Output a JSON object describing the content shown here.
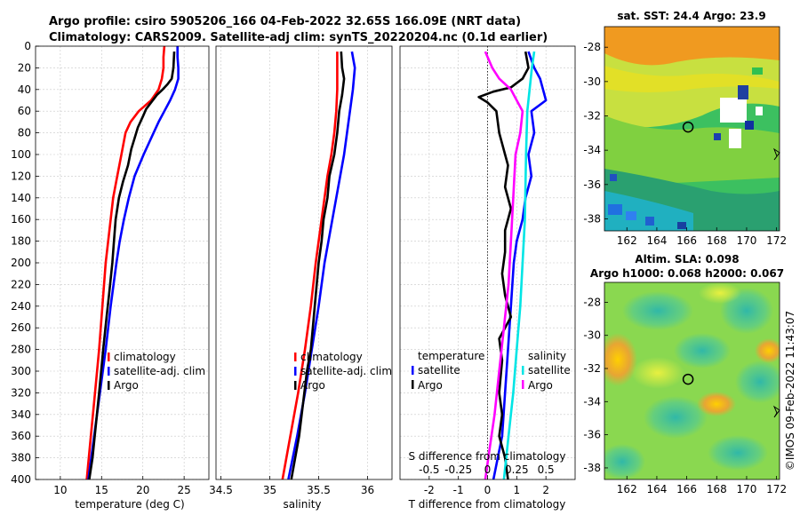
{
  "header": {
    "title_line1": "Argo profile: csiro 5905206_166 04-Feb-2022 32.65S 166.09E (NRT data)",
    "title_line2": "Climatology: CARS2009. Satellite-adj clim: synTS_20220204.nc (0.1d earlier)"
  },
  "sidebar": {
    "imos_stamp": "©IMOS 09-Feb-2022 11:43:07"
  },
  "colors": {
    "climatology": "#ff0000",
    "satellite": "#0000ff",
    "argo": "#000000",
    "salinity_sat": "#00e5e5",
    "salinity_argo": "#ff00ff",
    "grid": "#c8c8c8"
  },
  "chart_data": [
    {
      "id": "temperature",
      "type": "line",
      "xlabel": "temperature (deg C)",
      "ylabel": "",
      "xlim": [
        7,
        28
      ],
      "ylim": [
        400,
        0
      ],
      "xticks": [
        10,
        15,
        20,
        25
      ],
      "yticks": [
        0,
        20,
        40,
        60,
        80,
        100,
        120,
        140,
        160,
        180,
        200,
        220,
        240,
        260,
        280,
        300,
        320,
        340,
        360,
        380,
        400
      ],
      "grid": true,
      "legend": [
        "climatology",
        "satellite-adj. clim",
        "Argo"
      ],
      "series": [
        {
          "name": "climatology",
          "color": "#ff0000",
          "points": [
            [
              22.6,
              0
            ],
            [
              22.5,
              10
            ],
            [
              22.5,
              20
            ],
            [
              22.3,
              30
            ],
            [
              21.9,
              40
            ],
            [
              21.0,
              50
            ],
            [
              19.5,
              60
            ],
            [
              18.5,
              70
            ],
            [
              17.9,
              80
            ],
            [
              17.4,
              100
            ],
            [
              16.9,
              120
            ],
            [
              16.4,
              140
            ],
            [
              16.1,
              160
            ],
            [
              15.8,
              180
            ],
            [
              15.5,
              200
            ],
            [
              15.1,
              240
            ],
            [
              14.7,
              280
            ],
            [
              14.2,
              320
            ],
            [
              13.7,
              360
            ],
            [
              13.2,
              400
            ]
          ]
        },
        {
          "name": "satellite-adj. clim",
          "color": "#0000ff",
          "points": [
            [
              24.2,
              0
            ],
            [
              24.2,
              10
            ],
            [
              24.3,
              20
            ],
            [
              24.3,
              30
            ],
            [
              23.9,
              40
            ],
            [
              23.3,
              50
            ],
            [
              22.6,
              60
            ],
            [
              21.9,
              70
            ],
            [
              21.3,
              80
            ],
            [
              20.1,
              100
            ],
            [
              19.0,
              120
            ],
            [
              18.3,
              140
            ],
            [
              17.7,
              160
            ],
            [
              17.2,
              180
            ],
            [
              16.8,
              200
            ],
            [
              16.1,
              240
            ],
            [
              15.5,
              280
            ],
            [
              14.8,
              320
            ],
            [
              14.1,
              360
            ],
            [
              13.4,
              400
            ]
          ]
        },
        {
          "name": "Argo",
          "color": "#000000",
          "points": [
            [
              23.8,
              5
            ],
            [
              23.7,
              20
            ],
            [
              23.5,
              30
            ],
            [
              23.0,
              35
            ],
            [
              22.4,
              40
            ],
            [
              21.7,
              45
            ],
            [
              21.0,
              52
            ],
            [
              20.4,
              58
            ],
            [
              20.0,
              65
            ],
            [
              19.7,
              70
            ],
            [
              19.4,
              75
            ],
            [
              19.0,
              85
            ],
            [
              18.6,
              95
            ],
            [
              18.2,
              110
            ],
            [
              17.6,
              125
            ],
            [
              17.1,
              140
            ],
            [
              16.7,
              160
            ],
            [
              16.5,
              180
            ],
            [
              16.3,
              200
            ],
            [
              15.9,
              230
            ],
            [
              15.6,
              250
            ],
            [
              15.2,
              280
            ],
            [
              14.7,
              320
            ],
            [
              14.3,
              350
            ],
            [
              13.9,
              380
            ],
            [
              13.5,
              400
            ]
          ]
        }
      ]
    },
    {
      "id": "salinity",
      "type": "line",
      "xlabel": "salinity",
      "ylabel": "",
      "xlim": [
        34.45,
        36.25
      ],
      "ylim": [
        400,
        0
      ],
      "xticks": [
        34.5,
        35,
        35.5,
        36
      ],
      "grid": true,
      "legend": [
        "climatology",
        "satellite-adj. clim",
        "Argo"
      ],
      "series": [
        {
          "name": "climatology",
          "color": "#ff0000",
          "points": [
            [
              35.69,
              5
            ],
            [
              35.69,
              20
            ],
            [
              35.69,
              40
            ],
            [
              35.68,
              60
            ],
            [
              35.66,
              80
            ],
            [
              35.63,
              100
            ],
            [
              35.59,
              120
            ],
            [
              35.56,
              140
            ],
            [
              35.53,
              160
            ],
            [
              35.5,
              180
            ],
            [
              35.47,
              200
            ],
            [
              35.42,
              240
            ],
            [
              35.36,
              280
            ],
            [
              35.29,
              320
            ],
            [
              35.21,
              360
            ],
            [
              35.13,
              400
            ]
          ]
        },
        {
          "name": "satellite-adj. clim",
          "color": "#0000ff",
          "points": [
            [
              35.84,
              5
            ],
            [
              35.87,
              20
            ],
            [
              35.85,
              40
            ],
            [
              35.82,
              60
            ],
            [
              35.79,
              80
            ],
            [
              35.76,
              100
            ],
            [
              35.72,
              120
            ],
            [
              35.68,
              140
            ],
            [
              35.64,
              160
            ],
            [
              35.6,
              180
            ],
            [
              35.56,
              200
            ],
            [
              35.5,
              240
            ],
            [
              35.43,
              280
            ],
            [
              35.36,
              320
            ],
            [
              35.28,
              360
            ],
            [
              35.19,
              400
            ]
          ]
        },
        {
          "name": "Argo",
          "color": "#000000",
          "points": [
            [
              35.73,
              5
            ],
            [
              35.74,
              20
            ],
            [
              35.76,
              30
            ],
            [
              35.74,
              45
            ],
            [
              35.71,
              60
            ],
            [
              35.69,
              80
            ],
            [
              35.66,
              100
            ],
            [
              35.61,
              120
            ],
            [
              35.59,
              140
            ],
            [
              35.55,
              160
            ],
            [
              35.53,
              180
            ],
            [
              35.5,
              200
            ],
            [
              35.48,
              220
            ],
            [
              35.46,
              240
            ],
            [
              35.44,
              260
            ],
            [
              35.42,
              280
            ],
            [
              35.38,
              300
            ],
            [
              35.34,
              330
            ],
            [
              35.3,
              360
            ],
            [
              35.24,
              390
            ],
            [
              35.22,
              400
            ]
          ]
        }
      ]
    },
    {
      "id": "difference",
      "type": "line",
      "xlabel": "T difference from climatology",
      "xlabel_top": "S difference from climatology",
      "xlim": [
        -3,
        3
      ],
      "xlim_salinity": [
        -0.75,
        0.75
      ],
      "ylim": [
        400,
        0
      ],
      "xticks": [
        -2,
        -1,
        0,
        1,
        2
      ],
      "xticks_top": [
        -0.5,
        -0.25,
        0,
        0.25,
        0.5
      ],
      "xticklabels_top": [
        "-0.5",
        "-0.25",
        "0",
        "0.25",
        "0.5"
      ],
      "grid": true,
      "legend_temperature": {
        "title": "temperature",
        "entries": [
          "satellite",
          "Argo"
        ]
      },
      "legend_salinity": {
        "title": "salinity",
        "entries": [
          "satellite",
          "Argo"
        ]
      },
      "series": [
        {
          "name": "temperature satellite",
          "color": "#0000ff",
          "points": [
            [
              1.4,
              5
            ],
            [
              1.6,
              20
            ],
            [
              1.8,
              30
            ],
            [
              1.9,
              40
            ],
            [
              2.0,
              50
            ],
            [
              1.5,
              60
            ],
            [
              1.6,
              80
            ],
            [
              1.4,
              100
            ],
            [
              1.5,
              120
            ],
            [
              1.3,
              140
            ],
            [
              1.2,
              160
            ],
            [
              1.0,
              180
            ],
            [
              0.9,
              200
            ],
            [
              0.8,
              240
            ],
            [
              0.7,
              280
            ],
            [
              0.6,
              320
            ],
            [
              0.5,
              360
            ],
            [
              0.2,
              400
            ]
          ]
        },
        {
          "name": "temperature Argo",
          "color": "#000000",
          "points": [
            [
              1.3,
              5
            ],
            [
              1.4,
              20
            ],
            [
              1.2,
              30
            ],
            [
              0.8,
              38
            ],
            [
              0.2,
              42
            ],
            [
              -0.3,
              47
            ],
            [
              0.0,
              52
            ],
            [
              0.3,
              60
            ],
            [
              0.4,
              80
            ],
            [
              0.5,
              90
            ],
            [
              0.6,
              100
            ],
            [
              0.7,
              110
            ],
            [
              0.6,
              130
            ],
            [
              0.8,
              150
            ],
            [
              0.6,
              170
            ],
            [
              0.6,
              190
            ],
            [
              0.5,
              210
            ],
            [
              0.6,
              230
            ],
            [
              0.8,
              250
            ],
            [
              0.4,
              270
            ],
            [
              0.5,
              290
            ],
            [
              0.4,
              320
            ],
            [
              0.5,
              340
            ],
            [
              0.4,
              360
            ],
            [
              0.6,
              380
            ],
            [
              0.7,
              400
            ]
          ]
        },
        {
          "name": "salinity satellite",
          "color": "#00e5e5",
          "points": [
            [
              0.4,
              5
            ],
            [
              0.38,
              20
            ],
            [
              0.36,
              40
            ],
            [
              0.34,
              60
            ],
            [
              0.33,
              100
            ],
            [
              0.32,
              160
            ],
            [
              0.3,
              200
            ],
            [
              0.28,
              240
            ],
            [
              0.25,
              280
            ],
            [
              0.22,
              320
            ],
            [
              0.18,
              360
            ],
            [
              0.14,
              400
            ]
          ]
        },
        {
          "name": "salinity Argo",
          "color": "#ff00ff",
          "points": [
            [
              -0.02,
              5
            ],
            [
              0.04,
              20
            ],
            [
              0.1,
              30
            ],
            [
              0.2,
              40
            ],
            [
              0.25,
              50
            ],
            [
              0.3,
              60
            ],
            [
              0.28,
              80
            ],
            [
              0.24,
              100
            ],
            [
              0.22,
              140
            ],
            [
              0.2,
              180
            ],
            [
              0.18,
              220
            ],
            [
              0.14,
              260
            ],
            [
              0.1,
              300
            ],
            [
              0.06,
              340
            ],
            [
              0.02,
              370
            ],
            [
              -0.02,
              400
            ]
          ]
        }
      ]
    },
    {
      "id": "sst-map",
      "type": "heatmap",
      "title": "sat. SST: 24.4 Argo: 23.9",
      "xlim": [
        160.5,
        172.2
      ],
      "ylim": [
        -38.7,
        -26.8
      ],
      "xticks": [
        162,
        164,
        166,
        168,
        170,
        172
      ],
      "yticks": [
        -28,
        -30,
        -32,
        -34,
        -36,
        -38
      ],
      "argo_location": [
        166.09,
        -32.65
      ]
    },
    {
      "id": "sla-map",
      "type": "heatmap",
      "title_line1": "Altim. SLA: 0.098",
      "title_line2": "Argo h1000: 0.068 h2000: 0.067",
      "xlim": [
        160.5,
        172.2
      ],
      "ylim": [
        -38.7,
        -26.8
      ],
      "xticks": [
        162,
        164,
        166,
        168,
        170,
        172
      ],
      "yticks": [
        -28,
        -30,
        -32,
        -34,
        -36,
        -38
      ],
      "argo_location": [
        166.09,
        -32.65
      ]
    }
  ]
}
